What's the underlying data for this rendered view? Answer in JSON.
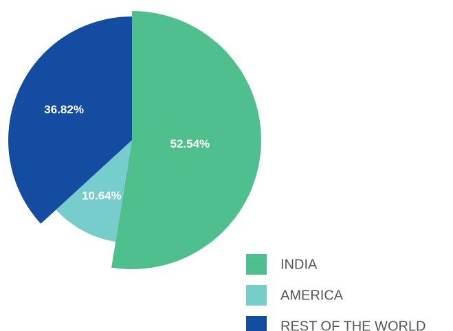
{
  "chart_data": {
    "type": "pie",
    "categories": [
      "INDIA",
      "AMERICA",
      "REST OF THE WORLD"
    ],
    "values": [
      52.54,
      10.64,
      36.82
    ],
    "value_labels": [
      "52.54%",
      "10.64%",
      "36.82%"
    ],
    "colors": [
      "#4fc08d",
      "#77cccc",
      "#134ca0"
    ],
    "legend": "bottom-right"
  }
}
